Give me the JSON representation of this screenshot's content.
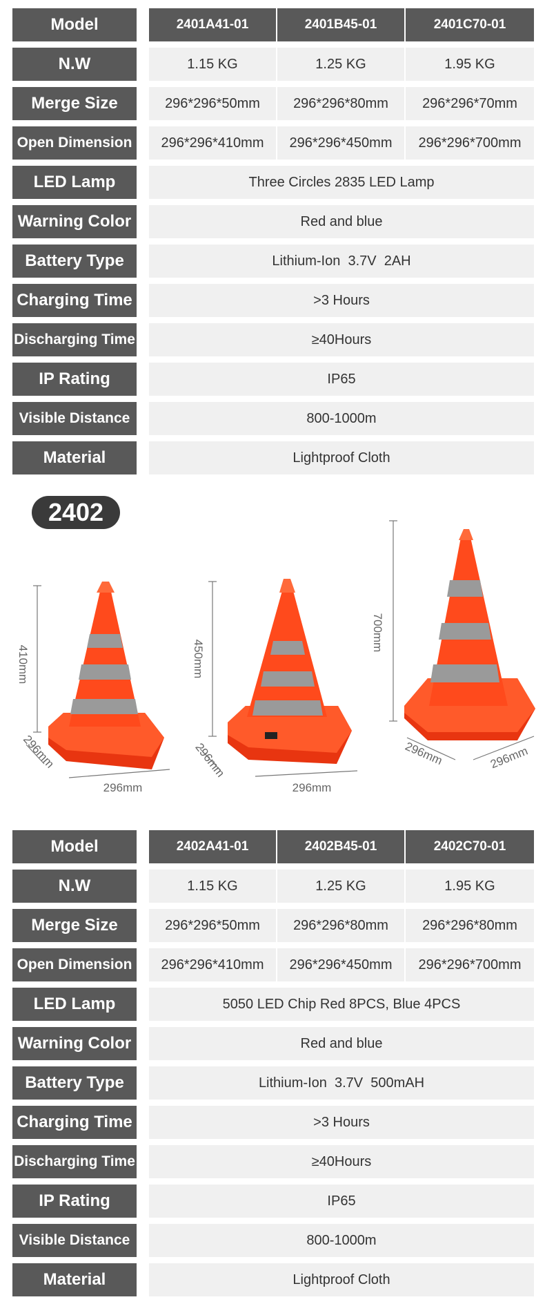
{
  "table_2401": {
    "header_label": "Model",
    "models": [
      "2401A41-01",
      "2401B45-01",
      "2401C70-01"
    ],
    "rows": [
      {
        "label": "N.W",
        "values": [
          "1.15 KG",
          "1.25 KG",
          "1.95 KG"
        ]
      },
      {
        "label": "Merge Size",
        "values": [
          "296*296*50mm",
          "296*296*80mm",
          "296*296*70mm"
        ]
      },
      {
        "label": "Open Dimension",
        "values": [
          "296*296*410mm",
          "296*296*450mm",
          "296*296*700mm"
        ]
      },
      {
        "label": "LED Lamp",
        "value": "Three Circles 2835 LED Lamp"
      },
      {
        "label": "Warning Color",
        "value": "Red and blue"
      },
      {
        "label": "Battery Type",
        "value": "Lithium-Ion  3.7V  2AH"
      },
      {
        "label": "Charging Time",
        "value": ">3 Hours"
      },
      {
        "label": "Discharging Time",
        "value": "≥40Hours"
      },
      {
        "label": "IP Rating",
        "value": "IP65"
      },
      {
        "label": "Visible Distance",
        "value": "800-1000m"
      },
      {
        "label": "Material",
        "value": "Lightproof Cloth"
      }
    ]
  },
  "series_badge": "2402",
  "cones": [
    {
      "height_label": "410mm",
      "depth_label": "296mm",
      "width_label": "296mm"
    },
    {
      "height_label": "450mm",
      "depth_label": "296mm",
      "width_label": "296mm"
    },
    {
      "height_label": "700mm",
      "depth_label": "296mm",
      "width_label": "296mm"
    }
  ],
  "table_2402": {
    "header_label": "Model",
    "models": [
      "2402A41-01",
      "2402B45-01",
      "2402C70-01"
    ],
    "rows": [
      {
        "label": "N.W",
        "values": [
          "1.15 KG",
          "1.25 KG",
          "1.95 KG"
        ]
      },
      {
        "label": "Merge Size",
        "values": [
          "296*296*50mm",
          "296*296*80mm",
          "296*296*80mm"
        ]
      },
      {
        "label": "Open Dimension",
        "values": [
          "296*296*410mm",
          "296*296*450mm",
          "296*296*700mm"
        ]
      },
      {
        "label": "LED Lamp",
        "value": "5050 LED Chip Red 8PCS, Blue 4PCS"
      },
      {
        "label": "Warning Color",
        "value": "Red and blue"
      },
      {
        "label": "Battery Type",
        "value": "Lithium-Ion  3.7V  500mAH"
      },
      {
        "label": "Charging Time",
        "value": ">3 Hours"
      },
      {
        "label": "Discharging Time",
        "value": "≥40Hours"
      },
      {
        "label": "IP Rating",
        "value": "IP65"
      },
      {
        "label": "Visible Distance",
        "value": "800-1000m"
      },
      {
        "label": "Material",
        "value": "Lightproof Cloth"
      }
    ]
  },
  "colors": {
    "label_bg": "#595959",
    "cell_bg": "#f0f0f0",
    "cone_orange": "#ff4a1c",
    "reflective_band": "#9a9a9a"
  }
}
